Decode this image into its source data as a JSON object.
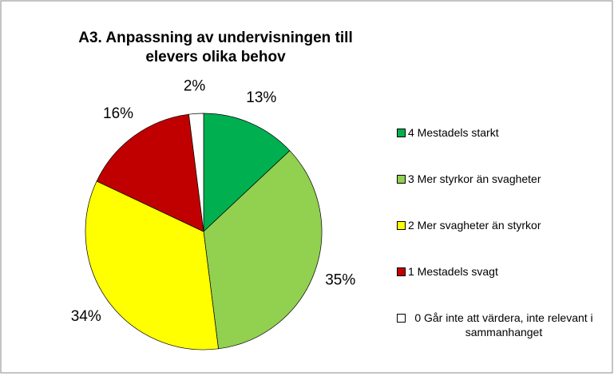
{
  "chart_data": {
    "type": "pie",
    "title": "A3. Anpassning av undervisningen till elevers olika behov",
    "categories": [
      "4 Mestadels starkt",
      "3 Mer styrkor än svagheter",
      "2 Mer svagheter än styrkor",
      "1 Mestadels svagt",
      "0 Går inte att värdera, inte relevant i sammanhanget"
    ],
    "values": [
      13,
      35,
      34,
      16,
      2
    ],
    "value_labels": [
      "13%",
      "35%",
      "34%",
      "16%",
      "2%"
    ],
    "colors": [
      "#00b050",
      "#92d050",
      "#ffff00",
      "#c00000",
      "#ffffff"
    ],
    "legend": "right"
  }
}
